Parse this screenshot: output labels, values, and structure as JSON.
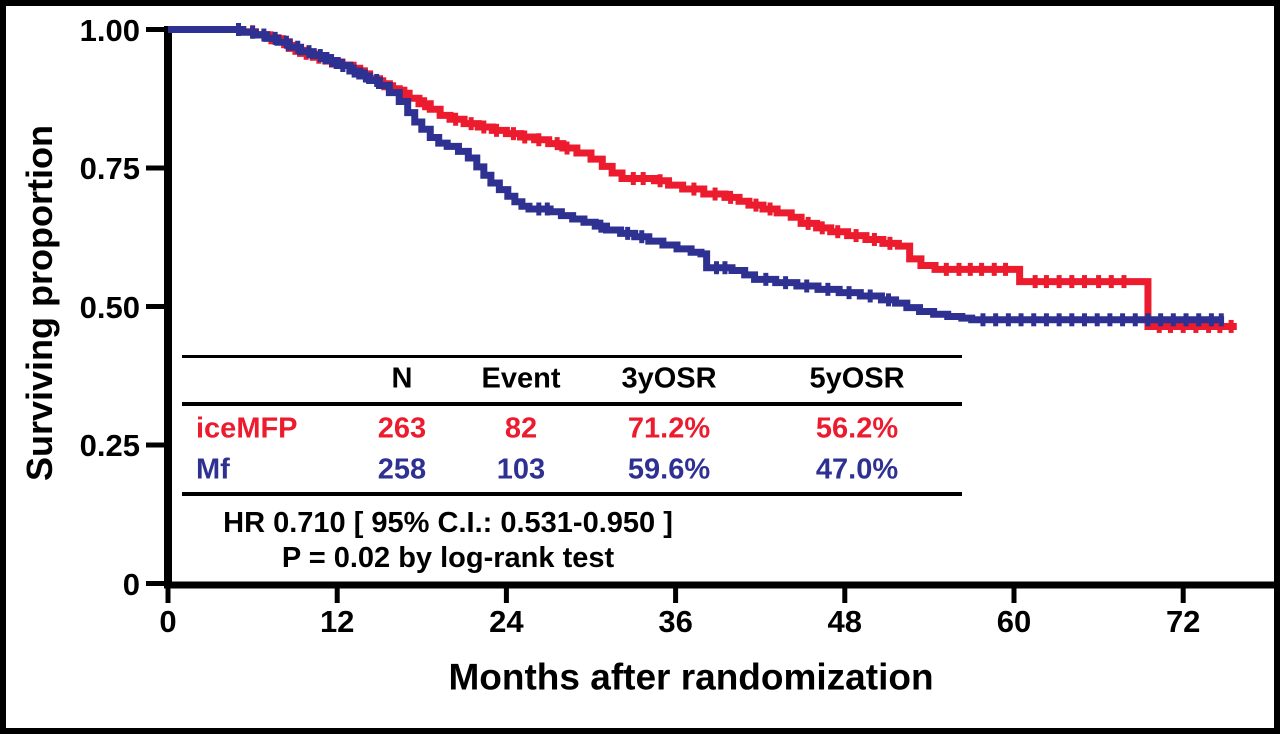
{
  "colors": {
    "red": "#EC1B2E",
    "blue": "#2E3192",
    "axis": "#000000"
  },
  "y_axis": {
    "label": "Surviving proportion",
    "tick_labels": [
      "1.00",
      "0.75",
      "0.50",
      "0.25",
      "0"
    ],
    "tick_values": [
      1.0,
      0.75,
      0.5,
      0.25,
      0
    ]
  },
  "x_axis": {
    "label": "Months after randomization",
    "tick_labels": [
      "0",
      "12",
      "24",
      "36",
      "48",
      "60",
      "72"
    ],
    "tick_values": [
      0,
      12,
      24,
      36,
      48,
      60,
      72
    ]
  },
  "table": {
    "headers": [
      "N",
      "Event",
      "3yOSR",
      "5yOSR"
    ],
    "rows": [
      {
        "label": "iceMFP",
        "color": "#EC1B2E",
        "values": [
          "263",
          "82",
          "71.2%",
          "56.2%"
        ]
      },
      {
        "label": "Mf",
        "color": "#2E3192",
        "values": [
          "258",
          "103",
          "59.6%",
          "47.0%"
        ]
      }
    ]
  },
  "stats": {
    "line1": "HR 0.710 [ 95% C.I.: 0.531-0.950 ]",
    "line2": "P = 0.02 by log-rank test"
  },
  "chart_data": {
    "type": "line",
    "subtype": "kaplan-meier-step",
    "title": "",
    "xlabel": "Months after randomization",
    "ylabel": "Surviving proportion",
    "xlim": [
      0,
      76
    ],
    "ylim": [
      0,
      1
    ],
    "x_ticks": [
      0,
      12,
      24,
      36,
      48,
      60,
      72
    ],
    "y_ticks": [
      0,
      0.25,
      0.5,
      0.75,
      1.0
    ],
    "grid": false,
    "legend_position": "none",
    "series": [
      {
        "name": "iceMFP",
        "color": "#EC1B2E",
        "n": 263,
        "events": 82,
        "osr_3y": "71.2%",
        "osr_5y": "56.2%",
        "steps": [
          [
            0,
            1.0
          ],
          [
            4.5,
            1.0
          ],
          [
            5.3,
            0.996
          ],
          [
            6.2,
            0.991
          ],
          [
            7,
            0.985
          ],
          [
            7.8,
            0.978
          ],
          [
            8.6,
            0.966
          ],
          [
            9.4,
            0.957
          ],
          [
            10.3,
            0.95
          ],
          [
            11.2,
            0.943
          ],
          [
            12,
            0.936
          ],
          [
            12.9,
            0.93
          ],
          [
            13.6,
            0.92
          ],
          [
            14.3,
            0.911
          ],
          [
            15,
            0.902
          ],
          [
            15.7,
            0.893
          ],
          [
            16.4,
            0.885
          ],
          [
            17.1,
            0.876
          ],
          [
            17.8,
            0.866
          ],
          [
            18.6,
            0.856
          ],
          [
            19.3,
            0.845
          ],
          [
            20,
            0.838
          ],
          [
            21,
            0.83
          ],
          [
            22,
            0.824
          ],
          [
            23,
            0.818
          ],
          [
            24,
            0.812
          ],
          [
            25,
            0.806
          ],
          [
            26,
            0.801
          ],
          [
            27,
            0.794
          ],
          [
            28,
            0.786
          ],
          [
            29,
            0.777
          ],
          [
            30,
            0.766
          ],
          [
            30.8,
            0.753
          ],
          [
            31.5,
            0.741
          ],
          [
            32.2,
            0.731
          ],
          [
            34.5,
            0.727
          ],
          [
            35.5,
            0.719
          ],
          [
            36.5,
            0.712
          ],
          [
            38,
            0.703
          ],
          [
            39.5,
            0.697
          ],
          [
            40.5,
            0.69
          ],
          [
            41.2,
            0.683
          ],
          [
            42.2,
            0.676
          ],
          [
            43.2,
            0.669
          ],
          [
            44.2,
            0.661
          ],
          [
            44.9,
            0.65
          ],
          [
            46,
            0.642
          ],
          [
            47,
            0.635
          ],
          [
            48.2,
            0.628
          ],
          [
            49.5,
            0.621
          ],
          [
            50.7,
            0.614
          ],
          [
            51.8,
            0.609
          ],
          [
            52.6,
            0.586
          ],
          [
            53.4,
            0.574
          ],
          [
            54.4,
            0.567
          ],
          [
            60.2,
            0.567
          ],
          [
            60.4,
            0.545
          ],
          [
            69.3,
            0.545
          ],
          [
            69.5,
            0.464
          ],
          [
            75.8,
            0.464
          ]
        ],
        "censor_tick_months_approx": [
          5.0,
          6.0,
          7.3,
          8.2,
          9.0,
          9.8,
          10.7,
          11.6,
          12.4,
          13.2,
          14.0,
          15.3,
          16.0,
          16.8,
          18.2,
          20.4,
          21.5,
          22.4,
          23.3,
          24.5,
          25.3,
          26.3,
          27.6,
          28.3,
          33.0,
          33.7,
          34.9,
          37.3,
          38.8,
          39.9,
          41.7,
          42.7,
          45.4,
          46.4,
          47.5,
          48.8,
          50.1,
          51.2,
          55.2,
          56.1,
          56.9,
          57.7,
          58.6,
          59.4,
          61.5,
          62.3,
          63.2,
          64.1,
          65.0,
          66.0,
          66.9,
          67.8,
          70.3,
          71.1,
          72.0,
          72.9,
          73.8,
          74.6,
          75.4
        ]
      },
      {
        "name": "Mf",
        "color": "#2E3192",
        "n": 258,
        "events": 103,
        "osr_3y": "59.6%",
        "osr_5y": "47.0%",
        "steps": [
          [
            0,
            1.0
          ],
          [
            4.5,
            1.0
          ],
          [
            5.3,
            0.995
          ],
          [
            6.2,
            0.99
          ],
          [
            7,
            0.984
          ],
          [
            7.8,
            0.977
          ],
          [
            8.6,
            0.968
          ],
          [
            9.4,
            0.96
          ],
          [
            10.3,
            0.953
          ],
          [
            11.2,
            0.944
          ],
          [
            12,
            0.935
          ],
          [
            12.9,
            0.925
          ],
          [
            13.6,
            0.916
          ],
          [
            14.3,
            0.908
          ],
          [
            15,
            0.899
          ],
          [
            15.7,
            0.886
          ],
          [
            16.4,
            0.87
          ],
          [
            17,
            0.85
          ],
          [
            17.5,
            0.833
          ],
          [
            18,
            0.82
          ],
          [
            18.6,
            0.805
          ],
          [
            19.2,
            0.795
          ],
          [
            19.8,
            0.789
          ],
          [
            20.6,
            0.78
          ],
          [
            21.3,
            0.768
          ],
          [
            21.9,
            0.752
          ],
          [
            22.4,
            0.737
          ],
          [
            22.9,
            0.723
          ],
          [
            23.5,
            0.711
          ],
          [
            24.1,
            0.699
          ],
          [
            24.6,
            0.689
          ],
          [
            25.1,
            0.681
          ],
          [
            25.6,
            0.676
          ],
          [
            27.1,
            0.671
          ],
          [
            27.9,
            0.664
          ],
          [
            28.7,
            0.658
          ],
          [
            29.5,
            0.652
          ],
          [
            30.3,
            0.645
          ],
          [
            31.1,
            0.638
          ],
          [
            32.1,
            0.632
          ],
          [
            33.1,
            0.626
          ],
          [
            34.1,
            0.618
          ],
          [
            35.1,
            0.611
          ],
          [
            36.1,
            0.604
          ],
          [
            37.1,
            0.598
          ],
          [
            37.8,
            0.595
          ],
          [
            38.2,
            0.57
          ],
          [
            40,
            0.565
          ],
          [
            40.9,
            0.557
          ],
          [
            41.6,
            0.549
          ],
          [
            43.1,
            0.543
          ],
          [
            44.6,
            0.537
          ],
          [
            46.1,
            0.531
          ],
          [
            47.6,
            0.525
          ],
          [
            49.1,
            0.519
          ],
          [
            50.6,
            0.512
          ],
          [
            51.6,
            0.506
          ],
          [
            52.4,
            0.498
          ],
          [
            53.3,
            0.491
          ],
          [
            54.3,
            0.486
          ],
          [
            55.3,
            0.482
          ],
          [
            56.3,
            0.479
          ],
          [
            57,
            0.476
          ],
          [
            74.9,
            0.476
          ]
        ],
        "censor_tick_months_approx": [
          5.0,
          6.0,
          6.8,
          7.6,
          8.4,
          9.2,
          10.0,
          10.8,
          11.6,
          12.4,
          13.2,
          14.0,
          14.8,
          26.3,
          26.9,
          30.7,
          32.6,
          33.6,
          38.9,
          39.5,
          42.4,
          43.8,
          45.3,
          46.8,
          48.3,
          49.8,
          51.1,
          57.8,
          58.7,
          59.6,
          60.5,
          61.4,
          62.3,
          63.2,
          64.1,
          65.0,
          65.9,
          66.8,
          67.7,
          68.6,
          69.5,
          70.4,
          71.3,
          72.2,
          73.1,
          74.0,
          74.7
        ]
      }
    ],
    "annotations": [
      "HR 0.710 [ 95% C.I.: 0.531-0.950 ]",
      "P = 0.02 by log-rank test"
    ]
  }
}
